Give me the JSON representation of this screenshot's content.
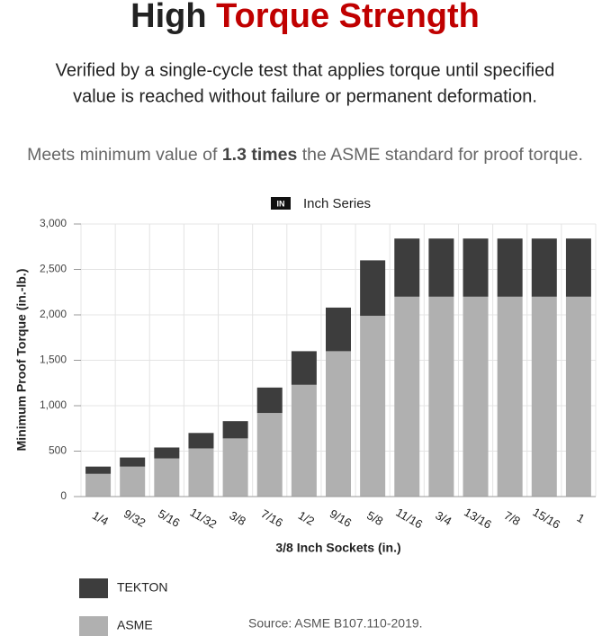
{
  "header": {
    "title_prefix": "High",
    "title_highlight": "Torque Strength",
    "subtitle_lines": [
      "Verified by a single-cycle test that applies torque until specified",
      "value is reached without failure or permanent deformation."
    ],
    "note_before": "Meets minimum value of ",
    "note_bold": "1.3 times",
    "note_after": " the ASME standard for proof torque."
  },
  "chart_data": {
    "type": "stacked_bar",
    "badge": "IN",
    "title": "Inch Series",
    "categories": [
      "1/4",
      "9/32",
      "5/16",
      "11/32",
      "3/8",
      "7/16",
      "1/2",
      "9/16",
      "5/8",
      "11/16",
      "3/4",
      "13/16",
      "7/8",
      "15/16",
      "1"
    ],
    "series": [
      {
        "name": "ASME",
        "color": "#b0b0b0",
        "values": [
          250,
          330,
          420,
          530,
          640,
          920,
          1230,
          1600,
          1990,
          2200,
          2200,
          2200,
          2200,
          2200,
          2200
        ]
      },
      {
        "name": "TEKTON",
        "color": "#3d3d3d",
        "values": [
          80,
          100,
          120,
          170,
          190,
          280,
          370,
          480,
          610,
          640,
          640,
          640,
          640,
          640,
          640
        ]
      }
    ],
    "ylim": [
      0,
      3000
    ],
    "yticks": [
      0,
      {
        "value": 500,
        "label": "500"
      },
      {
        "value": 1000,
        "label": "1,000"
      },
      {
        "value": 1500,
        "label": "1,500"
      },
      {
        "value": 2000,
        "label": "2,000"
      },
      {
        "value": 2500,
        "label": "2,500"
      },
      {
        "value": 3000,
        "label": "3,000"
      }
    ],
    "x_label": "3/8 Inch Sockets (in.)",
    "y_label": "Minimum Proof Torque (in.-lb.)",
    "grid": true,
    "source": "Source: ASME B107.110-2019."
  }
}
